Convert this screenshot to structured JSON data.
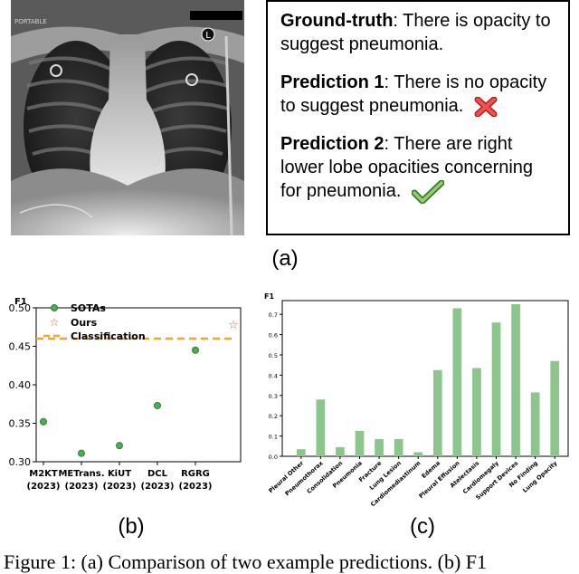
{
  "panel_a": {
    "xray_label": "PORTABLE",
    "marker": "L",
    "ground_truth": {
      "label": "Ground-truth",
      "text": ": There is opacity to suggest pneumonia."
    },
    "prediction1": {
      "label": "Prediction 1",
      "text": ": There is no opacity to suggest pneumonia."
    },
    "prediction2": {
      "label": "Prediction 2",
      "text": ": There are right lower lobe opacities concerning for pneumonia."
    },
    "caption": "(a)"
  },
  "panel_b_caption": "(b)",
  "panel_c_caption": "(c)",
  "figure_caption": "Figure 1: (a) Comparison of two example predictions. (b) F1",
  "chart_data": [
    {
      "type": "scatter",
      "ylabel": "F1",
      "ylim": [
        0.3,
        0.5
      ],
      "yticks": [
        "0.30",
        "0.35",
        "0.40",
        "0.45",
        "0.50"
      ],
      "categories": [
        "M2KT\n(2023)",
        "METrans.\n(2023)",
        "KiUT\n(2023)",
        "DCL\n(2023)",
        "RGRG\n(2023)"
      ],
      "series": [
        {
          "name": "SOTAs",
          "values": [
            0.352,
            0.311,
            0.321,
            0.373,
            0.445
          ],
          "color": "#4caf50"
        },
        {
          "name": "Ours",
          "values": [
            0.479
          ],
          "color": "#e05a5a"
        }
      ],
      "baseline": {
        "name": "Classification",
        "value": 0.46,
        "color": "#f5a623"
      },
      "legend": "top-left",
      "grid": false
    },
    {
      "type": "bar",
      "ylabel": "F1",
      "ylim": [
        0,
        0.75
      ],
      "yticks": [
        "0.0",
        "0.1",
        "0.2",
        "0.3",
        "0.4",
        "0.5",
        "0.6",
        "0.7"
      ],
      "categories": [
        "Pleural Other",
        "Pneumothorax",
        "Consolidation",
        "Pneumonia",
        "Fracture",
        "Lung Lesion",
        "Cardiomediastinum",
        "Edema",
        "Pleural Effusion",
        "Atelectasis",
        "Cardiomegaly",
        "Support Devices",
        "No Finding",
        "Lung Opacity"
      ],
      "values": [
        0.035,
        0.28,
        0.045,
        0.125,
        0.085,
        0.085,
        0.02,
        0.425,
        0.73,
        0.435,
        0.66,
        0.75,
        0.315,
        0.47
      ],
      "color": "#8cc68c",
      "grid": false
    }
  ]
}
